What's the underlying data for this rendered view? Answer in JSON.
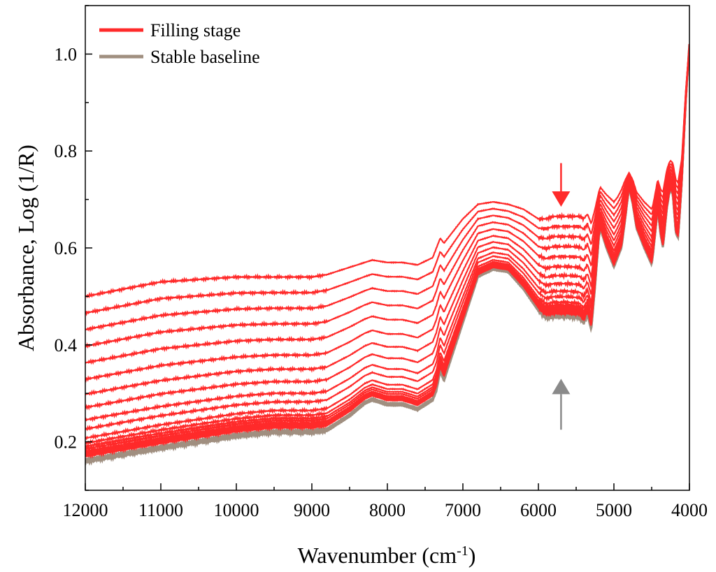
{
  "chart_data": {
    "type": "line",
    "title": "",
    "xlabel": "Wavenumber (cm",
    "xlabel_sup": "-1",
    "xlabel_end": ")",
    "ylabel": "Absorbance, Log (1/R)",
    "xlim": [
      12000,
      4000
    ],
    "ylim": [
      0.1,
      1.1
    ],
    "x_reversed": true,
    "x_ticks": [
      12000,
      11000,
      10000,
      9000,
      8000,
      7000,
      6000,
      5000,
      4000
    ],
    "x_tick_labels": [
      "12000",
      "11000",
      "10000",
      "9000",
      "8000",
      "7000",
      "6000",
      "5000",
      "4000"
    ],
    "y_ticks": [
      0.2,
      0.4,
      0.6,
      0.8,
      1.0
    ],
    "y_tick_labels": [
      "0.2",
      "0.4",
      "0.6",
      "0.8",
      "1.0"
    ],
    "legend": [
      {
        "label": "Filling stage",
        "color": "#ff2a2a"
      },
      {
        "label": "Stable baseline",
        "color": "#a08f80"
      }
    ],
    "legend_position": "top-left",
    "template_shape": {
      "x": [
        12000,
        11000,
        10000,
        9500,
        9000,
        8800,
        8500,
        8300,
        8200,
        8000,
        7800,
        7600,
        7400,
        7350,
        7300,
        7250,
        7200,
        7000,
        6800,
        6600,
        6400,
        6200,
        6000,
        5900,
        5800,
        5600,
        5450,
        5400,
        5350,
        5300,
        5250,
        5200,
        5180,
        5100,
        5000,
        4950,
        4900,
        4850,
        4800,
        4750,
        4700,
        4600,
        4500,
        4480,
        4420,
        4380,
        4350,
        4300,
        4270,
        4250,
        4220,
        4180,
        4150,
        4120,
        4100,
        4050,
        4000
      ],
      "base": [
        0.158,
        0.185,
        0.21,
        0.218,
        0.218,
        0.222,
        0.252,
        0.278,
        0.285,
        0.275,
        0.275,
        0.265,
        0.285,
        0.305,
        0.345,
        0.325,
        0.35,
        0.445,
        0.54,
        0.555,
        0.55,
        0.515,
        0.47,
        0.455,
        0.458,
        0.458,
        0.455,
        0.445,
        0.462,
        0.43,
        0.52,
        0.62,
        0.64,
        0.6,
        0.56,
        0.58,
        0.6,
        0.66,
        0.725,
        0.69,
        0.64,
        0.6,
        0.565,
        0.59,
        0.68,
        0.625,
        0.6,
        0.68,
        0.71,
        0.72,
        0.71,
        0.63,
        0.62,
        0.69,
        0.74,
        0.9,
        1.02
      ],
      "hi": [
        0.5,
        0.53,
        0.54,
        0.54,
        0.54,
        0.545,
        0.56,
        0.57,
        0.575,
        0.57,
        0.57,
        0.565,
        0.58,
        0.6,
        0.62,
        0.61,
        0.62,
        0.66,
        0.69,
        0.695,
        0.69,
        0.68,
        0.66,
        0.66,
        0.665,
        0.665,
        0.665,
        0.66,
        0.67,
        0.65,
        0.68,
        0.715,
        0.725,
        0.71,
        0.695,
        0.705,
        0.72,
        0.74,
        0.755,
        0.74,
        0.715,
        0.695,
        0.68,
        0.69,
        0.74,
        0.72,
        0.715,
        0.76,
        0.775,
        0.78,
        0.775,
        0.74,
        0.735,
        0.765,
        0.785,
        0.92,
        1.02
      ]
    },
    "series": [
      {
        "name": "Filling stage",
        "level": 0.035
      },
      {
        "name": "Filling stage",
        "level": 0.045
      },
      {
        "name": "Filling stage",
        "level": 0.055
      },
      {
        "name": "Filling stage",
        "level": 0.065
      },
      {
        "name": "Filling stage",
        "level": 0.08
      },
      {
        "name": "Filling stage",
        "level": 0.095
      },
      {
        "name": "Filling stage",
        "level": 0.115
      },
      {
        "name": "Filling stage",
        "level": 0.145
      },
      {
        "name": "Filling stage",
        "level": 0.2
      },
      {
        "name": "Filling stage",
        "level": 0.255
      },
      {
        "name": "Filling stage",
        "level": 0.33
      },
      {
        "name": "Filling stage",
        "level": 0.41
      },
      {
        "name": "Filling stage",
        "level": 0.5
      },
      {
        "name": "Filling stage",
        "level": 0.6
      },
      {
        "name": "Filling stage",
        "level": 0.7
      },
      {
        "name": "Filling stage",
        "level": 0.8
      },
      {
        "name": "Filling stage",
        "level": 0.9
      },
      {
        "name": "Filling stage",
        "level": 1.0
      }
    ],
    "baseline": {
      "name": "Stable baseline",
      "level": 0.0
    },
    "annotations": [
      {
        "type": "arrow",
        "direction": "down",
        "x": 5700,
        "y_from": 0.775,
        "y_to": 0.685,
        "color": "#ff2a2a"
      },
      {
        "type": "arrow",
        "direction": "up",
        "x": 5700,
        "y_from": 0.225,
        "y_to": 0.33,
        "color": "#8a8a8a"
      }
    ]
  }
}
